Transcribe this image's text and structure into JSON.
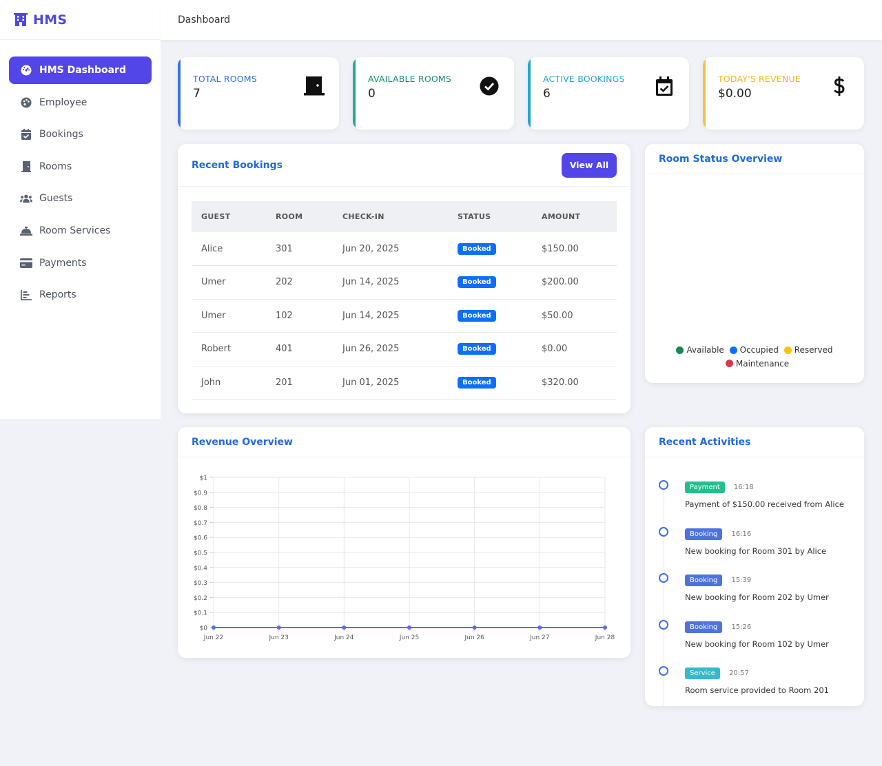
{
  "brand": {
    "name": "HMS"
  },
  "topbar": {
    "title": "Dashboard"
  },
  "sidebar": {
    "items": [
      {
        "label": "HMS Dashboard",
        "icon": "gauge-icon",
        "active": true
      },
      {
        "label": "Employee",
        "icon": "palette-icon"
      },
      {
        "label": "Bookings",
        "icon": "calendar-check-icon"
      },
      {
        "label": "Rooms",
        "icon": "door-icon"
      },
      {
        "label": "Guests",
        "icon": "users-icon"
      },
      {
        "label": "Room Services",
        "icon": "concierge-bell-icon"
      },
      {
        "label": "Payments",
        "icon": "credit-card-icon"
      },
      {
        "label": "Reports",
        "icon": "chart-bar-icon"
      }
    ]
  },
  "stats": [
    {
      "label": "TOTAL ROOMS",
      "value": "7",
      "icon": "door-icon",
      "color": "#3a6fe0"
    },
    {
      "label": "AVAILABLE ROOMS",
      "value": "0",
      "icon": "check-circle-icon",
      "color": "#1fae8b"
    },
    {
      "label": "ACTIVE BOOKINGS",
      "value": "6",
      "icon": "calendar-check-icon",
      "color": "#1fa7c8"
    },
    {
      "label": "TODAY'S REVENUE",
      "value": "$0.00",
      "icon": "dollar-icon",
      "color": "#f5c33b"
    }
  ],
  "recent_bookings": {
    "title": "Recent Bookings",
    "view_all": "View All",
    "columns": [
      "GUEST",
      "ROOM",
      "CHECK-IN",
      "STATUS",
      "AMOUNT"
    ],
    "rows": [
      {
        "guest": "Alice",
        "room": "301",
        "checkin": "Jun 20, 2025",
        "status": "Booked",
        "amount": "$150.00"
      },
      {
        "guest": "Umer",
        "room": "202",
        "checkin": "Jun 14, 2025",
        "status": "Booked",
        "amount": "$200.00"
      },
      {
        "guest": "Umer",
        "room": "102",
        "checkin": "Jun 14, 2025",
        "status": "Booked",
        "amount": "$50.00"
      },
      {
        "guest": "Robert",
        "room": "401",
        "checkin": "Jun 26, 2025",
        "status": "Booked",
        "amount": "$0.00"
      },
      {
        "guest": "John",
        "room": "201",
        "checkin": "Jun 01, 2025",
        "status": "Booked",
        "amount": "$320.00"
      }
    ]
  },
  "room_status": {
    "title": "Room Status Overview",
    "legend": [
      {
        "label": "Available",
        "color": "#198754"
      },
      {
        "label": "Occupied",
        "color": "#0d6efd"
      },
      {
        "label": "Reserved",
        "color": "#ffc107"
      },
      {
        "label": "Maintenance",
        "color": "#dc3545"
      }
    ]
  },
  "revenue": {
    "title": "Revenue Overview"
  },
  "chart_data": {
    "type": "line",
    "categories": [
      "Jun 22",
      "Jun 23",
      "Jun 24",
      "Jun 25",
      "Jun 26",
      "Jun 27",
      "Jun 28"
    ],
    "series": [
      {
        "values": [
          0,
          0,
          0,
          0,
          0,
          0,
          0
        ],
        "color": "#4e73df"
      }
    ],
    "y_ticks": [
      "$0",
      "$0.1",
      "$0.2",
      "$0.3",
      "$0.4",
      "$0.5",
      "$0.6",
      "$0.7",
      "$0.8",
      "$0.9",
      "$1"
    ],
    "ylim": [
      0,
      1
    ],
    "grid": true,
    "title": "",
    "xlabel": "",
    "ylabel": ""
  },
  "activities": {
    "title": "Recent Activities",
    "items": [
      {
        "tag": "Payment",
        "tag_color": "#1fc08e",
        "time": "16:18",
        "text": "Payment of $150.00 received from Alice"
      },
      {
        "tag": "Booking",
        "tag_color": "#4e73df",
        "time": "16:16",
        "text": "New booking for Room 301 by Alice"
      },
      {
        "tag": "Booking",
        "tag_color": "#4e73df",
        "time": "15:39",
        "text": "New booking for Room 202 by Umer"
      },
      {
        "tag": "Booking",
        "tag_color": "#4e73df",
        "time": "15:26",
        "text": "New booking for Room 102 by Umer"
      },
      {
        "tag": "Service",
        "tag_color": "#36b9cc",
        "time": "20:57",
        "text": "Room service provided to Room 201"
      }
    ]
  }
}
